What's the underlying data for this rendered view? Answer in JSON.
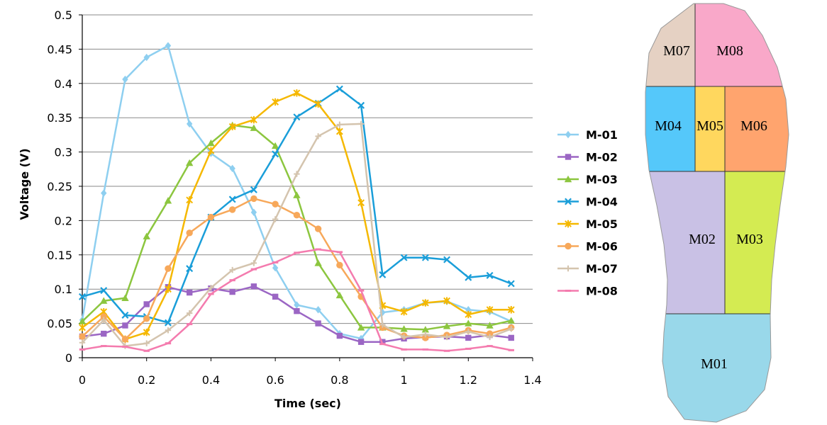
{
  "chart_data": {
    "type": "line",
    "title": "",
    "xlabel": "Time (sec)",
    "ylabel": "Voltage (V)",
    "xlim": [
      0,
      1.4
    ],
    "ylim": [
      0,
      0.5
    ],
    "xticks": [
      0,
      0.2,
      0.4,
      0.6,
      0.8,
      1,
      1.2,
      1.4
    ],
    "xtick_labels": [
      "0",
      "0.2",
      "0.4",
      "0.6",
      "0.8",
      "1",
      "1.2",
      "1.4"
    ],
    "yticks": [
      0,
      0.05,
      0.1,
      0.15,
      0.2,
      0.25,
      0.3,
      0.35,
      0.4,
      0.45,
      0.5
    ],
    "ytick_labels": [
      "0",
      "0.05",
      "0.1",
      "0.15",
      "0.2",
      "0.25",
      "0.3",
      "0.35",
      "0.4",
      "0.45",
      "0.5"
    ],
    "grid": "horizontal",
    "legend_position": "right",
    "x": [
      0,
      0.0667,
      0.1333,
      0.2,
      0.2667,
      0.3333,
      0.4,
      0.4667,
      0.5333,
      0.6,
      0.6667,
      0.7333,
      0.8,
      0.8667,
      0.9333,
      1.0,
      1.0667,
      1.1333,
      1.2,
      1.2667,
      1.3333
    ],
    "series": [
      {
        "name": "M-01",
        "color": "#8ECFF0",
        "marker": "diamond",
        "values": [
          0.055,
          0.24,
          0.406,
          0.438,
          0.455,
          0.341,
          0.298,
          0.276,
          0.212,
          0.131,
          0.077,
          0.07,
          0.035,
          0.028,
          0.066,
          0.07,
          0.08,
          0.082,
          0.07,
          0.067,
          0.053
        ]
      },
      {
        "name": "M-02",
        "color": "#9B66C4",
        "marker": "square",
        "values": [
          0.031,
          0.035,
          0.047,
          0.078,
          0.103,
          0.095,
          0.101,
          0.096,
          0.104,
          0.089,
          0.068,
          0.05,
          0.032,
          0.023,
          0.023,
          0.028,
          0.03,
          0.031,
          0.029,
          0.033,
          0.029
        ]
      },
      {
        "name": "M-03",
        "color": "#8CC63F",
        "marker": "triangle",
        "values": [
          0.053,
          0.083,
          0.087,
          0.177,
          0.229,
          0.284,
          0.313,
          0.339,
          0.335,
          0.309,
          0.237,
          0.138,
          0.091,
          0.044,
          0.044,
          0.042,
          0.041,
          0.046,
          0.05,
          0.047,
          0.054
        ]
      },
      {
        "name": "M-04",
        "color": "#1A9ED9",
        "marker": "x",
        "values": [
          0.089,
          0.098,
          0.062,
          0.06,
          0.051,
          0.13,
          0.205,
          0.231,
          0.245,
          0.297,
          0.351,
          0.371,
          0.392,
          0.368,
          0.121,
          0.146,
          0.146,
          0.143,
          0.117,
          0.12,
          0.108
        ]
      },
      {
        "name": "M-05",
        "color": "#F5B800",
        "marker": "star",
        "values": [
          0.044,
          0.067,
          0.027,
          0.037,
          0.1,
          0.23,
          0.302,
          0.337,
          0.347,
          0.373,
          0.386,
          0.37,
          0.33,
          0.226,
          0.076,
          0.067,
          0.08,
          0.083,
          0.063,
          0.07,
          0.07
        ]
      },
      {
        "name": "M-06",
        "color": "#F7A85A",
        "marker": "circle",
        "values": [
          0.031,
          0.06,
          0.027,
          0.057,
          0.13,
          0.182,
          0.205,
          0.216,
          0.232,
          0.224,
          0.208,
          0.188,
          0.135,
          0.089,
          0.044,
          0.032,
          0.029,
          0.033,
          0.04,
          0.035,
          0.044
        ]
      },
      {
        "name": "M-07",
        "color": "#D4C4AE",
        "marker": "plus",
        "values": [
          0.022,
          0.055,
          0.017,
          0.021,
          0.04,
          0.065,
          0.102,
          0.128,
          0.138,
          0.202,
          0.268,
          0.323,
          0.34,
          0.341,
          0.048,
          0.03,
          0.034,
          0.03,
          0.038,
          0.03,
          0.042
        ]
      },
      {
        "name": "M-08",
        "color": "#F47BAE",
        "marker": "dash",
        "values": [
          0.012,
          0.017,
          0.016,
          0.01,
          0.021,
          0.049,
          0.093,
          0.113,
          0.129,
          0.139,
          0.153,
          0.158,
          0.154,
          0.098,
          0.02,
          0.012,
          0.012,
          0.01,
          0.013,
          0.017,
          0.011
        ]
      }
    ]
  },
  "foot_map": {
    "zones": [
      {
        "id": "M07",
        "label": "M07",
        "color": "#E5D1C3"
      },
      {
        "id": "M08",
        "label": "M08",
        "color": "#F9A8C9"
      },
      {
        "id": "M04",
        "label": "M04",
        "color": "#55C8FA"
      },
      {
        "id": "M05",
        "label": "M05",
        "color": "#FFD75E"
      },
      {
        "id": "M06",
        "label": "M06",
        "color": "#FFA46E"
      },
      {
        "id": "M02",
        "label": "M02",
        "color": "#C9C1E5"
      },
      {
        "id": "M03",
        "label": "M03",
        "color": "#D4EB52"
      },
      {
        "id": "M01",
        "label": "M01",
        "color": "#99D8EA"
      }
    ]
  }
}
